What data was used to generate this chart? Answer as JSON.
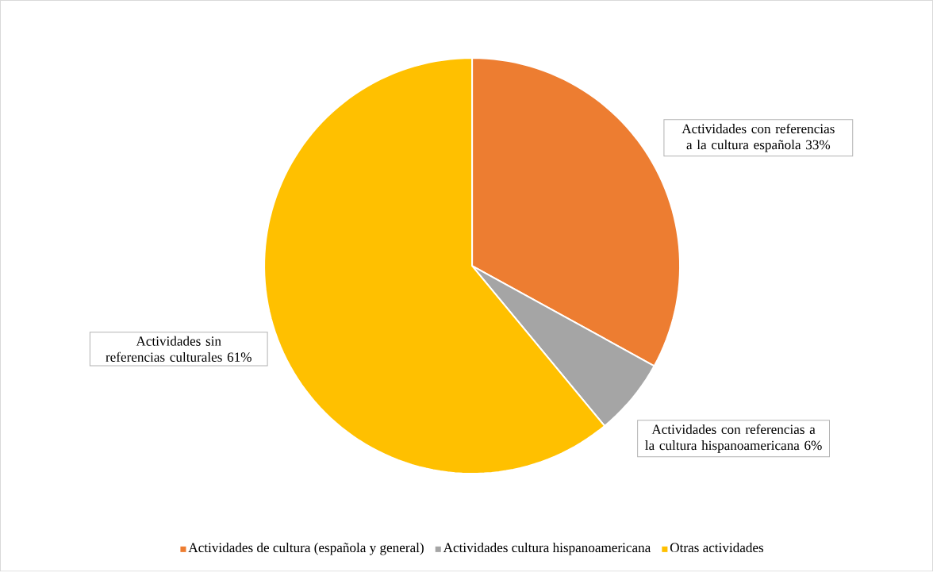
{
  "chart_data": {
    "type": "pie",
    "categories": [
      "Actividades de cultura (española y general)",
      "Actividades cultura hispanoamericana",
      "Otras actividades"
    ],
    "values": [
      33,
      6,
      61
    ],
    "colors": [
      "#ed7d31",
      "#a5a5a5",
      "#ffc000"
    ],
    "value_labels": [
      "Actividades con referencias a la cultura española 33%",
      "Actividades con referencias a la cultura hispanoamericana 6%",
      "Actividades sin referencias culturales 61%"
    ],
    "legend": "bottom"
  }
}
